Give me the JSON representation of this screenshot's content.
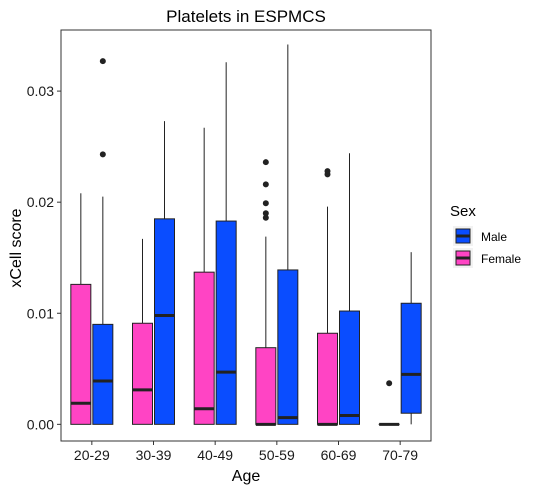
{
  "chart_data": {
    "type": "boxplot",
    "title": "Platelets in ESPMCS",
    "xlabel": "Age",
    "ylabel": "xCell score",
    "ylim": [
      -0.0015,
      0.0355
    ],
    "yticks": [
      0.0,
      0.01,
      0.02,
      0.03
    ],
    "ytick_labels": [
      "0.00",
      "0.01",
      "0.02",
      "0.03"
    ],
    "grid": false,
    "legend": {
      "title": "Sex",
      "placement": "right",
      "entries": [
        "Male",
        "Female"
      ]
    },
    "categories": [
      "20-29",
      "30-39",
      "40-49",
      "50-59",
      "60-69",
      "70-79"
    ],
    "series": [
      {
        "name": "Female",
        "color": "#ff44c4",
        "boxes": [
          {
            "min": 0.0,
            "q1": 0.0,
            "median": 0.0019,
            "q3": 0.0126,
            "max": 0.0208,
            "outliers": []
          },
          {
            "min": 0.0,
            "q1": 0.0,
            "median": 0.0031,
            "q3": 0.0091,
            "max": 0.0167,
            "outliers": []
          },
          {
            "min": 0.0,
            "q1": 0.0,
            "median": 0.0014,
            "q3": 0.0137,
            "max": 0.0267,
            "outliers": []
          },
          {
            "min": 0.0,
            "q1": 0.0,
            "median": 0.0,
            "q3": 0.0069,
            "max": 0.0169,
            "outliers": [
              0.0186,
              0.019,
              0.0199,
              0.0216,
              0.0236
            ]
          },
          {
            "min": 0.0,
            "q1": 0.0,
            "median": 0.0,
            "q3": 0.0082,
            "max": 0.0196,
            "outliers": [
              0.0225,
              0.0228
            ]
          },
          {
            "min": 0.0,
            "q1": 0.0,
            "median": 0.0,
            "q3": 0.0,
            "max": 0.0,
            "outliers": [
              0.0037
            ]
          }
        ]
      },
      {
        "name": "Male",
        "color": "#0a4dff",
        "boxes": [
          {
            "min": 0.0,
            "q1": 0.0,
            "median": 0.0039,
            "q3": 0.009,
            "max": 0.0205,
            "outliers": [
              0.0243,
              0.0327
            ]
          },
          {
            "min": 0.0,
            "q1": 0.0,
            "median": 0.0098,
            "q3": 0.0185,
            "max": 0.0273,
            "outliers": []
          },
          {
            "min": 0.0,
            "q1": 0.0,
            "median": 0.0047,
            "q3": 0.0183,
            "max": 0.0326,
            "outliers": []
          },
          {
            "min": 0.0,
            "q1": 0.0,
            "median": 0.0006,
            "q3": 0.0139,
            "max": 0.0342,
            "outliers": []
          },
          {
            "min": 0.0,
            "q1": 0.0,
            "median": 0.0008,
            "q3": 0.0102,
            "max": 0.0244,
            "outliers": []
          },
          {
            "min": 0.0,
            "q1": 0.001,
            "median": 0.0045,
            "q3": 0.0109,
            "max": 0.0155,
            "outliers": []
          }
        ]
      }
    ]
  }
}
